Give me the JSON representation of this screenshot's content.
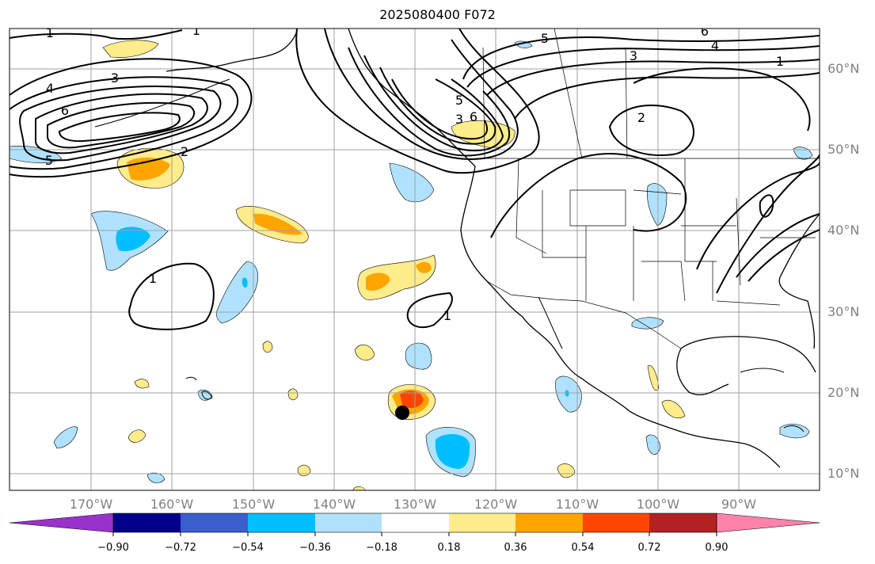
{
  "title": "2025080400 F072",
  "lat_labels": [
    "60°N",
    "50°N",
    "40°N",
    "30°N",
    "20°N",
    "10°N"
  ],
  "lon_labels": [
    "170°W",
    "160°W",
    "150°W",
    "140°W",
    "130°W",
    "120°W",
    "110°W",
    "100°W",
    "90°W"
  ],
  "contour_labels": [
    "1",
    "1",
    "3",
    "4",
    "6",
    "5",
    "2",
    "5",
    "3",
    "6",
    "5",
    "3",
    "6",
    "4",
    "1",
    "2",
    "1",
    "1"
  ],
  "colorbar": {
    "colors": [
      "#9932cc",
      "#00008b",
      "#3a5fcd",
      "#00bfff",
      "#b0e2ff",
      "#ffffff",
      "#ffec8b",
      "#ffa500",
      "#ff4500",
      "#b22222",
      "#ff82ab"
    ],
    "ticks": [
      "−0.90",
      "−0.72",
      "−0.54",
      "−0.36",
      "−0.18",
      "0.18",
      "0.36",
      "0.54",
      "0.72",
      "0.90"
    ]
  }
}
